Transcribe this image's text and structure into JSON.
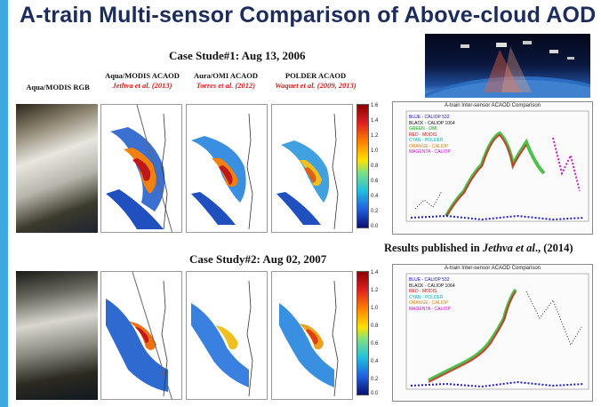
{
  "title": "A-train Multi-sensor Comparison of Above-cloud AOD",
  "case1": "Case Stude#1: Aug 13, 2006",
  "case2": "Case Study#2: Aug 02, 2007",
  "columns": [
    {
      "label": "Aqua/MODIS RGB",
      "ref": ""
    },
    {
      "label": "Aqua/MODIS ACAOD",
      "ref": "Jethva et al. (2013)"
    },
    {
      "label": "Aura/OMI ACAOD",
      "ref": "Torres et al. (2012)"
    },
    {
      "label": "POLDER ACAOD",
      "ref": "Waquet et al. (2009, 2013)"
    }
  ],
  "colorbar1": [
    "1.6",
    "1.4",
    "1.2",
    "1.0",
    "0.8",
    "0.6",
    "0.4",
    "0.2",
    "0.0"
  ],
  "colorbar2": [
    "1.4",
    "1.2",
    "1.0",
    "0.8",
    "0.6",
    "0.4",
    "0.2",
    "0.0"
  ],
  "plot1": {
    "title": "A-train Inter-sensor ACAOD Comparison",
    "legend": [
      "BLUE - CALIOP 532",
      "BLACK - CALIOP 1064",
      "GREEN - OMI",
      "RED - MODIS",
      "CYAN - POLDER",
      "ORANGE - CALIOP",
      "MAGENTA - CALIOP"
    ]
  },
  "plot2": {
    "title": "A-train Inter-sensor ACAOD Comparison",
    "legend": [
      "BLUE - CALIOP 532",
      "BLACK - CALIOP 1064",
      "RED - MODIS",
      "CYAN - POLDER",
      "ORANGE - CALIOP",
      "MAGENTA - CALIOP"
    ]
  },
  "results": {
    "prefix": "Results published in ",
    "author": "Jethva et al",
    "suffix": "., (2014)"
  },
  "colors": {
    "accent": "#3fa9df",
    "title": "#1c2c5c",
    "ref": "#d42020"
  }
}
